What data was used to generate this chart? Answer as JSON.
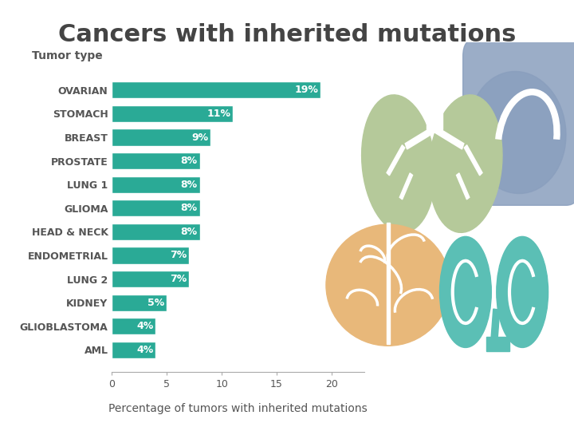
{
  "title": "Cancers with inherited mutations",
  "xlabel": "Percentage of tumors with inherited mutations",
  "ylabel_label": "Tumor type",
  "categories": [
    "OVARIAN",
    "STOMACH",
    "BREAST",
    "PROSTATE",
    "LUNG 1",
    "GLIOMA",
    "HEAD & NECK",
    "ENDOMETRIAL",
    "LUNG 2",
    "KIDNEY",
    "GLIOBLASTOMA",
    "AML"
  ],
  "values": [
    19,
    11,
    9,
    8,
    8,
    8,
    8,
    7,
    7,
    5,
    4,
    4
  ],
  "bar_color": "#2aaa96",
  "label_color": "#ffffff",
  "title_color": "#444444",
  "axis_label_color": "#555555",
  "tick_label_color": "#555555",
  "background_color": "#ffffff",
  "xlim": [
    0,
    23
  ],
  "xticks": [
    0,
    5,
    10,
    15,
    20
  ],
  "title_fontsize": 22,
  "axis_label_fontsize": 10,
  "bar_label_fontsize": 9,
  "tick_fontsize": 9,
  "ylabel_header_fontsize": 10,
  "lung_color": "#b5c99a",
  "stomach_color": "#8a9fbe",
  "brain_color": "#e8b87a",
  "kidney_color": "#5bbfb5"
}
